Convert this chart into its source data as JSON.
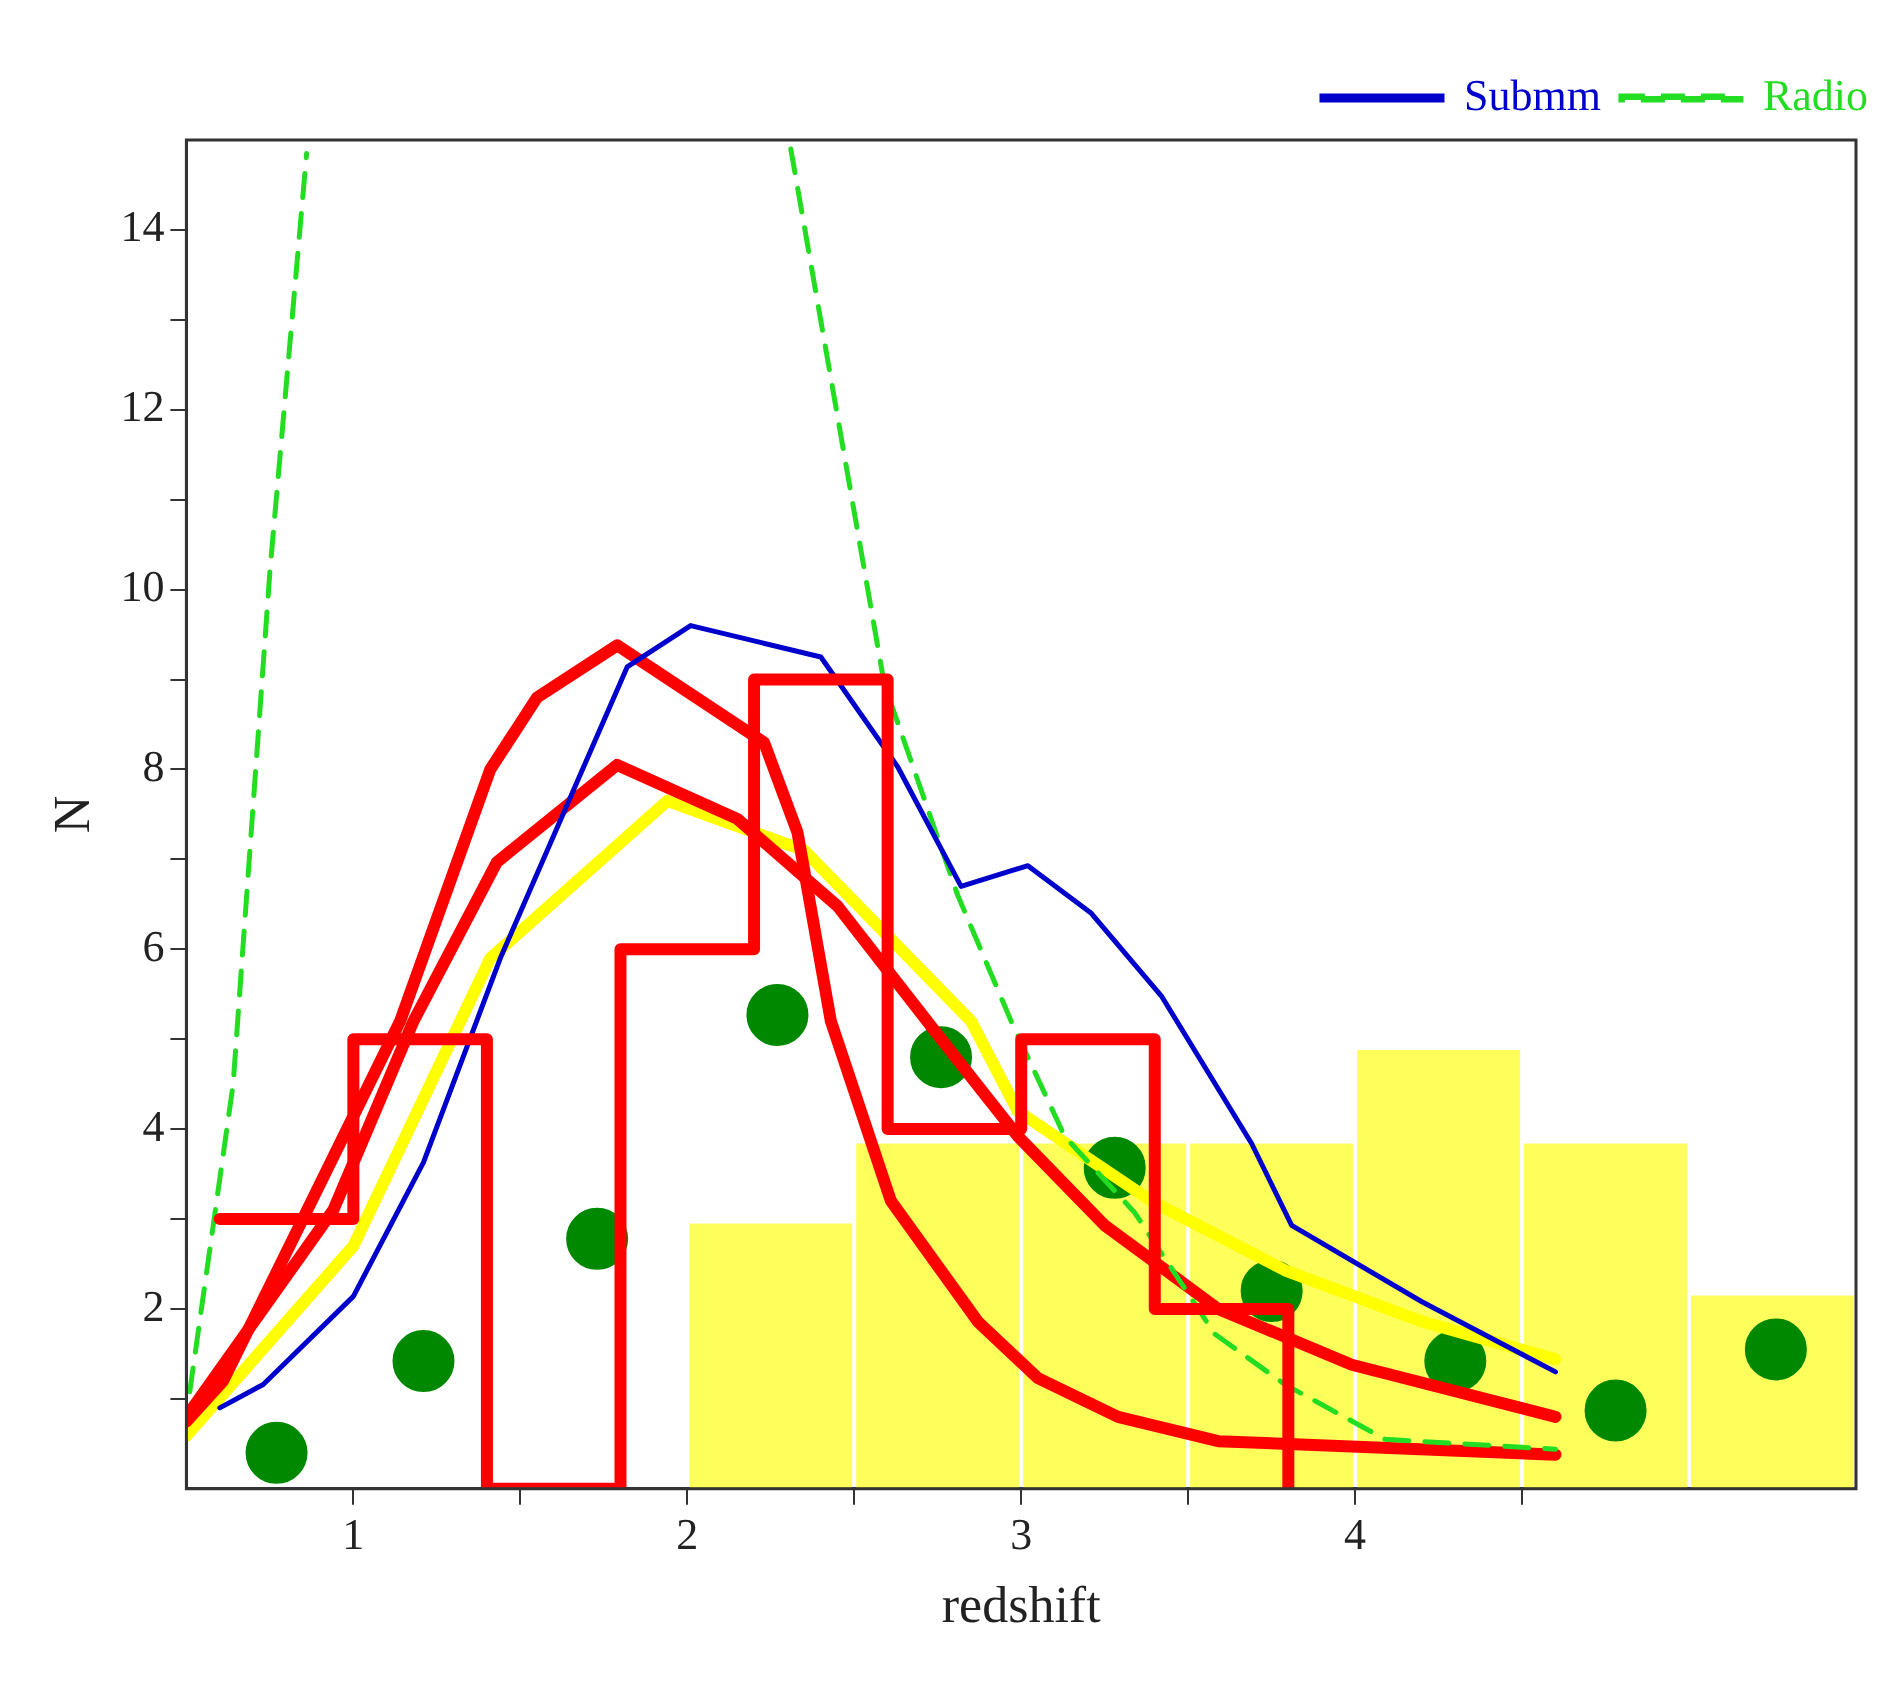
{
  "chart_data": {
    "type": "line",
    "xlabel": "redshift",
    "ylabel": "N",
    "xlim": [
      0.5,
      5.5
    ],
    "xticks": [
      1,
      {
        "value": 1.5,
        "label": null
      },
      2,
      {
        "value": 2.5,
        "label": null
      },
      3,
      {
        "value": 3.5,
        "label": null
      },
      4,
      {
        "value": 4.5,
        "label": null
      }
    ],
    "ylim": [
      0,
      15
    ],
    "yticks": [
      {
        "value": 1,
        "label": null
      },
      2,
      {
        "value": 3,
        "label": null
      },
      4,
      {
        "value": 5,
        "label": null
      },
      6,
      {
        "value": 7,
        "label": null
      },
      8,
      {
        "value": 9,
        "label": null
      },
      10,
      {
        "value": 11,
        "label": null
      },
      12,
      {
        "value": 13,
        "label": null
      },
      14
    ],
    "grid": false,
    "legend": "top right",
    "series": [
      {
        "type": "histogram",
        "color": "#ffff33",
        "bins": [
          2.0,
          2.5,
          3.0,
          3.5,
          4.0,
          4.5,
          5.0,
          5.5
        ],
        "values": [
          2.95,
          3.84,
          3.84,
          3.84,
          4.88,
          3.84,
          2.15
        ]
      },
      {
        "type": "step",
        "color": "#ff0000",
        "x": [
          0.6,
          1.0,
          1.4,
          1.8,
          2.2,
          2.6,
          3.0,
          3.4,
          3.8
        ],
        "values": [
          3,
          5,
          0,
          6,
          9,
          4,
          5,
          2,
          0
        ]
      },
      {
        "name": "Submm",
        "type": "line",
        "color": "#0000cc",
        "x": [
          0.6,
          0.73,
          1.0,
          1.21,
          1.44,
          1.82,
          2.01,
          2.4,
          2.63,
          2.82,
          3.02,
          3.21,
          3.42,
          3.69,
          3.81,
          4.2,
          4.6
        ],
        "values": [
          0.9,
          1.16,
          2.14,
          3.63,
          5.9,
          9.14,
          9.6,
          9.25,
          8.03,
          6.7,
          6.93,
          6.4,
          5.48,
          3.84,
          2.93,
          2.08,
          1.3
        ]
      },
      {
        "name": "Radio",
        "type": "line",
        "line_style": "dashed",
        "color": "#22dd22",
        "x": [
          0.51,
          0.64,
          0.75,
          0.86,
          1.5,
          2.31,
          2.55,
          2.59,
          2.81,
          2.97,
          3.13,
          3.34,
          3.58,
          3.79,
          4.09,
          4.6
        ],
        "values": [
          1.08,
          4.5,
          10.2,
          14.85,
          null,
          14.9,
          9.8,
          8.95,
          6.6,
          5.2,
          3.92,
          3.07,
          1.72,
          1.16,
          0.55,
          0.44
        ]
      },
      {
        "type": "line",
        "color": "#ff0000",
        "x": [
          0.5,
          0.61,
          1.14,
          1.41,
          1.55,
          1.79,
          2.23,
          2.33,
          2.43,
          2.61,
          2.87,
          3.05,
          3.29,
          3.59,
          4.6
        ],
        "values": [
          0.75,
          1.2,
          5.2,
          8.0,
          8.8,
          9.38,
          8.3,
          7.3,
          5.2,
          3.2,
          1.86,
          1.23,
          0.8,
          0.53,
          0.38
        ]
      },
      {
        "type": "line",
        "color": "#ff0000",
        "x": [
          0.5,
          0.94,
          1.18,
          1.43,
          1.79,
          2.15,
          2.45,
          2.75,
          2.99,
          3.25,
          3.59,
          3.99,
          4.6
        ],
        "values": [
          0.8,
          3.1,
          5.2,
          6.97,
          8.05,
          7.45,
          6.48,
          5.05,
          3.92,
          2.93,
          2.0,
          1.38,
          0.8
        ]
      },
      {
        "type": "line",
        "color": "#ffff00",
        "x": [
          0.5,
          1.0,
          1.41,
          1.94,
          2.35,
          2.85,
          2.99,
          3.39,
          3.79,
          4.2,
          4.6
        ],
        "values": [
          0.59,
          2.7,
          5.9,
          7.65,
          7.1,
          5.2,
          4.2,
          3.2,
          2.43,
          1.86,
          1.44
        ]
      },
      {
        "type": "scatter",
        "marker": "circle",
        "color": "#008800",
        "x": [
          0.77,
          1.21,
          1.73,
          2.27,
          2.76,
          3.28,
          3.75,
          4.3,
          4.78,
          5.26
        ],
        "values": [
          0.4,
          1.42,
          2.78,
          5.27,
          4.8,
          3.57,
          2.2,
          1.42,
          0.87,
          1.55
        ]
      }
    ]
  }
}
